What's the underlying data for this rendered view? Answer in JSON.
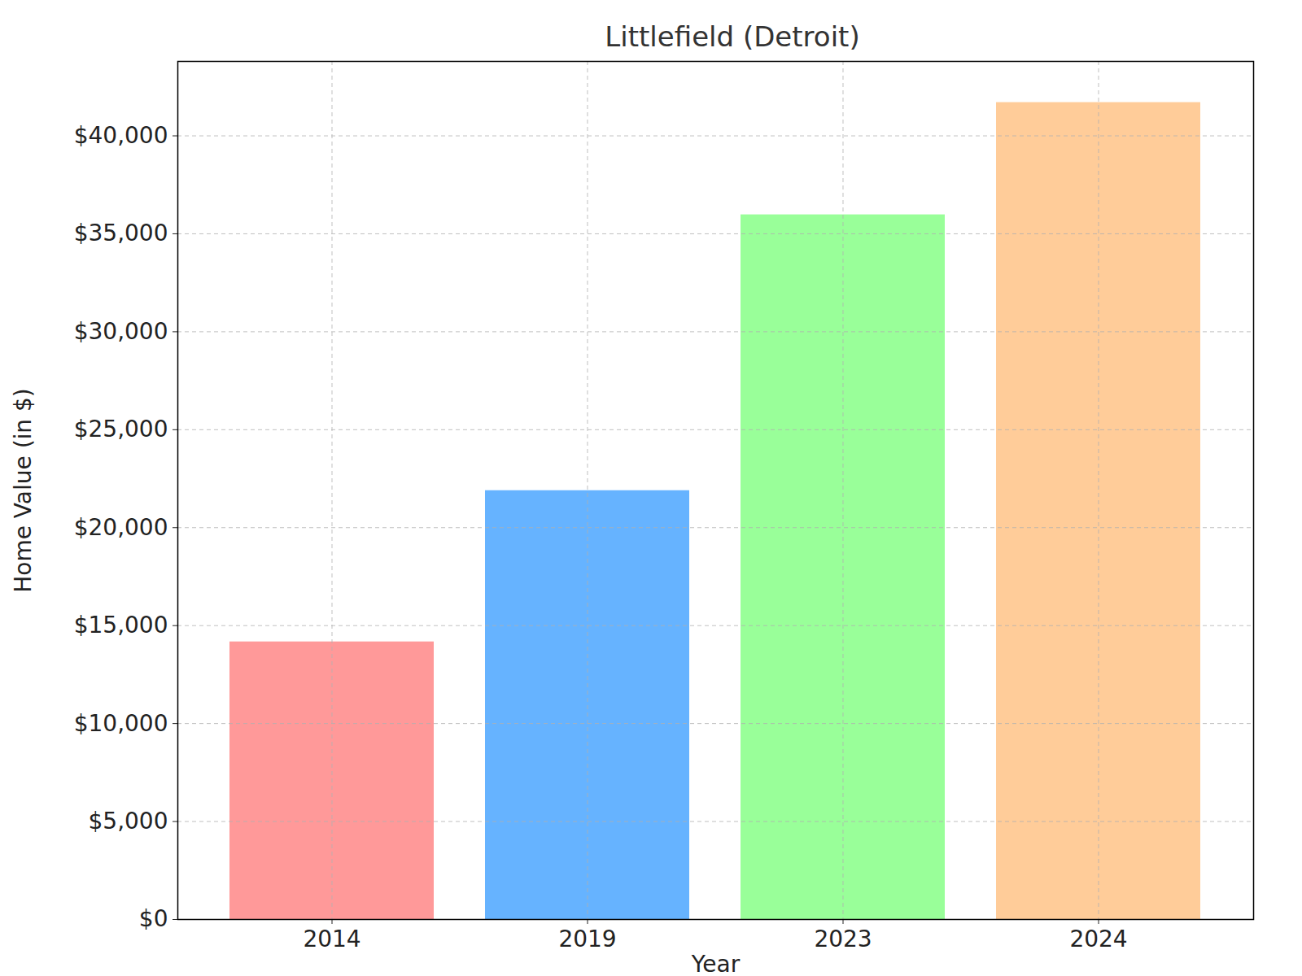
{
  "chart_data": {
    "type": "bar",
    "title": "Littlefield (Detroit)",
    "x_label": "Year",
    "y_label": "Home Value (in $)",
    "categories": [
      "2014",
      "2019",
      "2023",
      "2024"
    ],
    "values": [
      14170,
      21890,
      35970,
      41700
    ],
    "colors": [
      "#ff9999",
      "#66b3ff",
      "#99ff99",
      "#ffcc99"
    ],
    "ylim": [
      0,
      43800
    ],
    "yticks": [
      {
        "value": 0,
        "label": "$0"
      },
      {
        "value": 5000,
        "label": "$5,000"
      },
      {
        "value": 10000,
        "label": "$10,000"
      },
      {
        "value": 15000,
        "label": "$15,000"
      },
      {
        "value": 20000,
        "label": "$20,000"
      },
      {
        "value": 25000,
        "label": "$25,000"
      },
      {
        "value": 30000,
        "label": "$30,000"
      },
      {
        "value": 35000,
        "label": "$35,000"
      },
      {
        "value": 40000,
        "label": "$40,000"
      }
    ],
    "grid": true
  }
}
